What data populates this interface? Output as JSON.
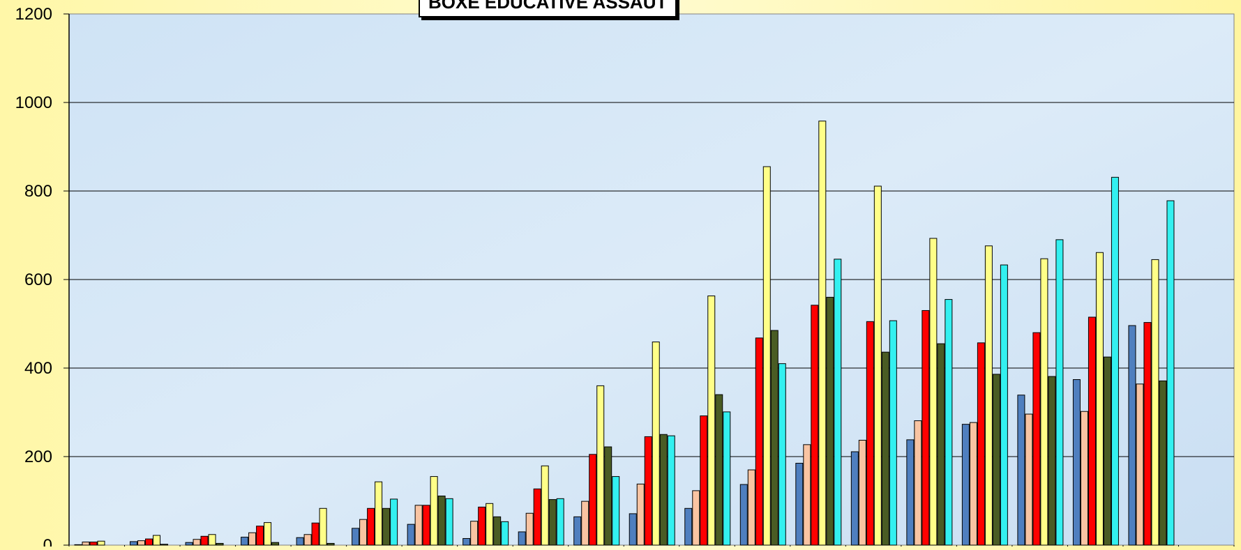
{
  "chart_data": {
    "type": "bar",
    "title": "BOXE EDUCATIVE ASSAUT",
    "xlabel": "",
    "ylabel": "",
    "ylim": [
      0,
      1200
    ],
    "yticks": [
      0,
      200,
      400,
      600,
      800,
      1000,
      1200
    ],
    "grid": true,
    "legend": "none",
    "categories": [
      "",
      "",
      "",
      "",
      "",
      "",
      "",
      "",
      "",
      "",
      "",
      "",
      "",
      "",
      "",
      "",
      "",
      "",
      "",
      "",
      ""
    ],
    "series": [
      {
        "color": "#4f7fbf",
        "values": [
          1,
          8,
          6,
          18,
          17,
          38,
          47,
          15,
          30,
          64,
          71,
          83,
          137,
          185,
          211,
          238,
          273,
          339,
          374,
          496,
          0
        ]
      },
      {
        "color": "#f9c4a2",
        "values": [
          7,
          10,
          13,
          28,
          24,
          58,
          90,
          54,
          72,
          99,
          138,
          123,
          170,
          227,
          237,
          281,
          277,
          296,
          302,
          364,
          0
        ]
      },
      {
        "color": "#ff0000",
        "values": [
          7,
          14,
          20,
          43,
          50,
          83,
          90,
          86,
          127,
          205,
          245,
          292,
          468,
          542,
          505,
          530,
          457,
          480,
          515,
          503,
          0
        ]
      },
      {
        "color": "#ffff88",
        "values": [
          9,
          22,
          24,
          51,
          83,
          143,
          155,
          94,
          179,
          360,
          459,
          563,
          855,
          958,
          811,
          693,
          676,
          647,
          661,
          645,
          0
        ]
      },
      {
        "color": "#4a5c24",
        "values": [
          0,
          2,
          4,
          6,
          4,
          83,
          111,
          64,
          103,
          222,
          250,
          340,
          485,
          560,
          436,
          455,
          386,
          381,
          425,
          371,
          0
        ]
      },
      {
        "color": "#33f0f0",
        "values": [
          0,
          0,
          0,
          0,
          0,
          104,
          105,
          53,
          105,
          155,
          247,
          301,
          410,
          646,
          507,
          555,
          633,
          690,
          831,
          778,
          0
        ]
      }
    ]
  }
}
